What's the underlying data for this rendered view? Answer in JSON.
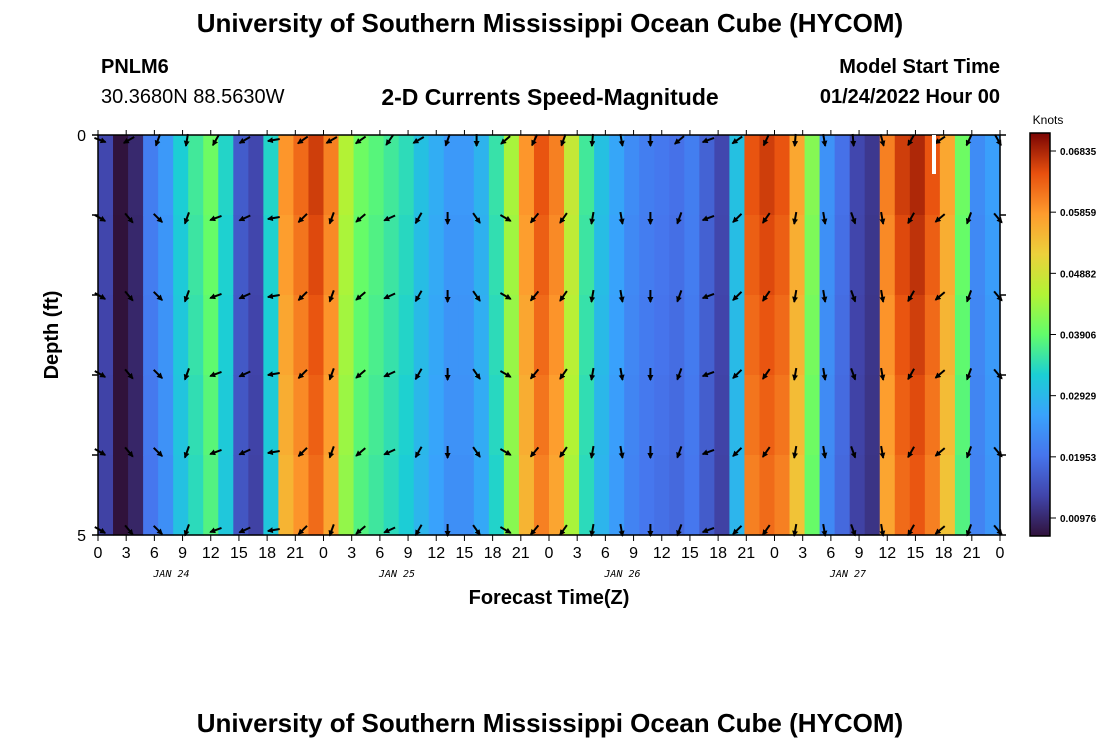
{
  "page": {
    "title": "University of Southern Mississippi Ocean Cube (HYCOM)",
    "footer_title": "University of Southern Mississippi Ocean Cube (HYCOM)"
  },
  "station": {
    "id": "PNLM6",
    "coords": "30.3680N  88.5630W"
  },
  "model": {
    "label": "Model Start Time",
    "start": "01/24/2022 Hour 00"
  },
  "chart_data": {
    "type": "heatmap",
    "title": "2-D Currents Speed-Magnitude",
    "xlabel": "Forecast Time(Z)",
    "ylabel": "Depth (ft)",
    "colorbar_label": "Knots",
    "colorbar_ticks": [
      "0.06835",
      "0.05859",
      "0.04882",
      "0.03906",
      "0.02929",
      "0.01953",
      "0.00976"
    ],
    "color_range": [
      0.0049,
      0.0732
    ],
    "y_ticks": [
      "0",
      "5"
    ],
    "x_ticks": [
      "0",
      "3",
      "6",
      "9",
      "12",
      "15",
      "18",
      "21",
      "0",
      "3",
      "6",
      "9",
      "12",
      "15",
      "18",
      "21",
      "0",
      "3",
      "6",
      "9",
      "12",
      "15",
      "18",
      "21",
      "0",
      "3",
      "6",
      "9",
      "12",
      "15",
      "18",
      "21",
      "0"
    ],
    "date_labels": [
      "JAN 24",
      "JAN 25",
      "JAN 26",
      "JAN 27"
    ],
    "depth_levels": [
      0,
      1,
      2,
      3,
      4,
      5
    ],
    "speed_knots": [
      0.012,
      0.005,
      0.008,
      0.02,
      0.024,
      0.032,
      0.036,
      0.04,
      0.033,
      0.015,
      0.012,
      0.033,
      0.06,
      0.064,
      0.068,
      0.062,
      0.046,
      0.04,
      0.038,
      0.036,
      0.034,
      0.03,
      0.027,
      0.024,
      0.024,
      0.028,
      0.035,
      0.045,
      0.06,
      0.066,
      0.062,
      0.048,
      0.036,
      0.03,
      0.026,
      0.022,
      0.02,
      0.019,
      0.018,
      0.02,
      0.016,
      0.012,
      0.03,
      0.066,
      0.068,
      0.066,
      0.058,
      0.042,
      0.023,
      0.018,
      0.012,
      0.01,
      0.062,
      0.068,
      0.07,
      0.066,
      0.058,
      0.04,
      0.022,
      0.025
    ],
    "vectors_dir_deg": [
      120,
      170,
      140,
      180,
      135,
      150,
      200,
      210,
      250,
      230,
      245,
      260,
      230,
      225,
      210,
      200,
      190,
      230,
      250,
      245,
      225,
      210,
      200,
      180,
      150,
      145,
      140,
      120,
      240,
      220,
      215,
      210,
      190,
      200,
      170,
      160,
      180,
      190,
      200,
      230,
      250,
      240,
      225,
      220,
      215,
      200,
      190,
      195,
      170,
      160,
      150,
      170,
      200,
      210,
      220,
      230,
      210,
      200,
      180,
      140
    ],
    "vectors_shallow_dir_deg": [
      110,
      230,
      240,
      230,
      200,
      210,
      190,
      200,
      210,
      230,
      240,
      260,
      245,
      235,
      250,
      240,
      230,
      235,
      225,
      215,
      230,
      240,
      260,
      200,
      190,
      180,
      205,
      230,
      225,
      205,
      200,
      210,
      185,
      190,
      170,
      160,
      180,
      210,
      230,
      240,
      250,
      250,
      235,
      215,
      205,
      195,
      185,
      190,
      170,
      175,
      165,
      165,
      195,
      210,
      225,
      235,
      215,
      205,
      185,
      150
    ]
  }
}
